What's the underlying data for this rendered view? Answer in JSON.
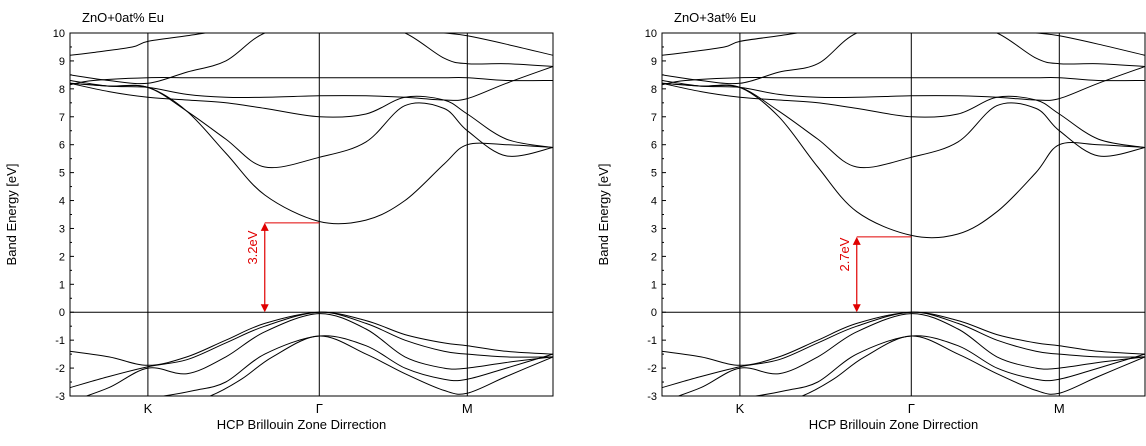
{
  "chart_data": [
    {
      "type": "line",
      "title": "ZnO+0at% Eu",
      "xlabel": "HCP Brillouin Zone Dirrection",
      "ylabel": "Band Energy [eV]",
      "ylim": [
        -3,
        10
      ],
      "yticks": [
        "-3",
        "-2",
        "-1",
        "0",
        "1",
        "2",
        "3",
        "4",
        "5",
        "6",
        "7",
        "8",
        "9",
        "10"
      ],
      "xlim": [
        0,
        6.2
      ],
      "xticks": [
        {
          "x": 1.0,
          "label": "K"
        },
        {
          "x": 3.2,
          "label": "Γ"
        },
        {
          "x": 5.1,
          "label": "M"
        }
      ],
      "grid": false,
      "annotation": {
        "label": "3.2eV",
        "x": 2.5,
        "from": 0,
        "to": 3.2,
        "guide_to_x": 3.2,
        "color": "#e00000"
      },
      "series": [
        {
          "x": [
            0,
            0.5,
            1.0,
            1.5,
            2.0,
            2.5,
            3.2,
            3.8,
            4.3,
            4.8,
            5.1,
            5.6,
            6.2
          ],
          "values": [
            8.5,
            8.3,
            8.2,
            8.6,
            9.0,
            10.0,
            10.4,
            10.3,
            10.0,
            9.1,
            8.9,
            8.9,
            8.8
          ]
        },
        {
          "x": [
            0,
            0.3,
            0.8,
            1.0,
            1.5,
            2.0,
            2.5,
            3.2,
            3.8,
            4.3,
            4.8,
            5.1,
            5.6,
            6.2
          ],
          "values": [
            9.2,
            9.3,
            9.5,
            9.7,
            9.9,
            10.1,
            10.2,
            10.3,
            10.2,
            10.1,
            10.0,
            9.9,
            9.6,
            9.2
          ]
        },
        {
          "x": [
            0,
            0.3,
            1.0,
            1.5,
            2.0,
            2.5,
            3.2,
            3.8,
            4.3,
            4.8,
            5.1,
            5.6,
            6.2
          ],
          "values": [
            8.15,
            8.3,
            8.4,
            8.4,
            8.4,
            8.4,
            8.4,
            8.4,
            8.4,
            8.4,
            8.4,
            8.3,
            8.3
          ]
        },
        {
          "x": [
            0,
            0.5,
            1.0,
            1.5,
            2.0,
            2.5,
            3.2,
            3.8,
            4.3,
            4.8,
            5.1,
            5.6,
            6.2
          ],
          "values": [
            8.3,
            8.1,
            8.05,
            7.8,
            7.7,
            7.7,
            7.75,
            7.75,
            7.7,
            7.6,
            7.65,
            8.2,
            8.8
          ]
        },
        {
          "x": [
            0,
            0.5,
            1.0,
            1.5,
            2.0,
            2.5,
            3.2,
            3.8,
            4.3,
            4.8,
            5.1,
            5.6,
            6.2
          ],
          "values": [
            8.2,
            7.9,
            7.7,
            7.6,
            7.5,
            7.3,
            7.0,
            7.1,
            7.7,
            7.6,
            7.1,
            6.2,
            5.9
          ]
        },
        {
          "x": [
            0,
            0.5,
            1.0,
            1.5,
            2.0,
            2.5,
            3.2,
            3.8,
            4.3,
            4.8,
            5.1,
            5.6,
            6.2
          ],
          "values": [
            8.2,
            8.1,
            8.05,
            7.2,
            6.2,
            5.2,
            5.55,
            6.1,
            7.4,
            7.3,
            6.5,
            5.6,
            5.9
          ]
        },
        {
          "x": [
            0,
            0.5,
            1.0,
            1.5,
            2.0,
            2.5,
            3.2,
            3.8,
            4.3,
            4.8,
            5.1,
            5.6,
            6.2
          ],
          "values": [
            8.2,
            8.1,
            8.05,
            7.2,
            5.7,
            4.2,
            3.25,
            3.3,
            4.0,
            5.3,
            6.0,
            6.0,
            5.9
          ]
        },
        {
          "x": [
            0,
            0.5,
            1.0,
            1.5,
            2.0,
            2.5,
            3.2,
            3.8,
            4.3,
            4.8,
            5.1,
            5.6,
            6.2
          ],
          "values": [
            -1.4,
            -1.6,
            -1.9,
            -1.6,
            -1.0,
            -0.4,
            0.0,
            -0.3,
            -0.8,
            -1.1,
            -1.2,
            -1.4,
            -1.5
          ]
        },
        {
          "x": [
            0,
            0.5,
            1.0,
            1.5,
            2.0,
            2.5,
            3.2,
            3.8,
            4.3,
            4.8,
            5.1,
            5.6,
            6.2
          ],
          "values": [
            -2.7,
            -2.3,
            -1.95,
            -1.7,
            -1.1,
            -0.5,
            0.0,
            -0.4,
            -1.0,
            -1.4,
            -1.5,
            -1.6,
            -1.6
          ]
        },
        {
          "x": [
            0,
            0.5,
            1.0,
            1.5,
            2.0,
            2.5,
            3.2,
            3.8,
            4.3,
            4.8,
            5.1,
            5.6,
            6.2
          ],
          "values": [
            -3.2,
            -2.7,
            -2.0,
            -2.2,
            -1.6,
            -0.7,
            -0.05,
            -0.6,
            -1.6,
            -2.0,
            -2.0,
            -1.8,
            -1.6
          ]
        },
        {
          "x": [
            0.3,
            0.8,
            1.2,
            1.6,
            2.0,
            2.5,
            3.2,
            3.8,
            4.3,
            4.8,
            5.1,
            5.6,
            6.2
          ],
          "values": [
            -3.2,
            -3.1,
            -3.0,
            -2.8,
            -2.5,
            -1.5,
            -0.85,
            -1.2,
            -2.0,
            -2.4,
            -2.4,
            -2.0,
            -1.5
          ]
        },
        {
          "x": [
            1.4,
            1.8,
            2.2,
            2.6,
            3.2,
            3.8,
            4.3,
            4.8,
            5.1,
            5.6,
            6.2
          ],
          "values": [
            -3.3,
            -3.0,
            -2.4,
            -1.6,
            -0.85,
            -1.5,
            -2.2,
            -2.8,
            -2.9,
            -2.3,
            -1.6
          ]
        }
      ]
    },
    {
      "type": "line",
      "title": "ZnO+3at% Eu",
      "xlabel": "HCP Brillouin Zone Dirrection",
      "ylabel": "Band Energy [eV]",
      "ylim": [
        -3,
        10
      ],
      "yticks": [
        "-3",
        "-2",
        "-1",
        "0",
        "1",
        "2",
        "3",
        "4",
        "5",
        "6",
        "7",
        "8",
        "9",
        "10"
      ],
      "xlim": [
        0,
        6.2
      ],
      "xticks": [
        {
          "x": 1.0,
          "label": "K"
        },
        {
          "x": 3.2,
          "label": "Γ"
        },
        {
          "x": 5.1,
          "label": "M"
        }
      ],
      "grid": false,
      "annotation": {
        "label": "2.7eV",
        "x": 2.5,
        "from": 0,
        "to": 2.7,
        "guide_to_x": 3.2,
        "color": "#e00000"
      },
      "series": [
        {
          "x": [
            0,
            0.5,
            1.0,
            1.5,
            2.0,
            2.5,
            3.2,
            3.8,
            4.3,
            4.8,
            5.1,
            5.6,
            6.2
          ],
          "values": [
            8.5,
            8.3,
            8.2,
            8.6,
            8.9,
            10.0,
            10.4,
            10.3,
            10.0,
            9.1,
            8.9,
            8.9,
            8.8
          ]
        },
        {
          "x": [
            0,
            0.3,
            0.8,
            1.0,
            1.5,
            2.0,
            2.5,
            3.2,
            3.8,
            4.3,
            4.8,
            5.1,
            5.6,
            6.2
          ],
          "values": [
            9.2,
            9.3,
            9.5,
            9.7,
            9.9,
            10.1,
            10.2,
            10.3,
            10.2,
            10.1,
            10.0,
            9.9,
            9.6,
            9.2
          ]
        },
        {
          "x": [
            0,
            0.3,
            1.0,
            1.5,
            2.0,
            2.5,
            3.2,
            3.8,
            4.3,
            4.8,
            5.1,
            5.6,
            6.2
          ],
          "values": [
            8.15,
            8.3,
            8.4,
            8.4,
            8.4,
            8.4,
            8.4,
            8.4,
            8.4,
            8.4,
            8.4,
            8.3,
            8.3
          ]
        },
        {
          "x": [
            0,
            0.5,
            1.0,
            1.5,
            2.0,
            2.5,
            3.2,
            3.8,
            4.3,
            4.8,
            5.1,
            5.6,
            6.2
          ],
          "values": [
            8.3,
            8.1,
            8.05,
            7.8,
            7.7,
            7.7,
            7.75,
            7.75,
            7.7,
            7.6,
            7.65,
            8.2,
            8.8
          ]
        },
        {
          "x": [
            0,
            0.5,
            1.0,
            1.5,
            2.0,
            2.5,
            3.2,
            3.8,
            4.3,
            4.8,
            5.1,
            5.6,
            6.2
          ],
          "values": [
            8.2,
            7.9,
            7.7,
            7.6,
            7.5,
            7.3,
            7.0,
            7.1,
            7.7,
            7.6,
            7.1,
            6.2,
            5.9
          ]
        },
        {
          "x": [
            0,
            0.5,
            1.0,
            1.5,
            2.0,
            2.5,
            3.2,
            3.8,
            4.3,
            4.8,
            5.1,
            5.6,
            6.2
          ],
          "values": [
            8.2,
            8.1,
            8.05,
            7.2,
            6.2,
            5.2,
            5.55,
            6.1,
            7.4,
            7.3,
            6.5,
            5.6,
            5.9
          ]
        },
        {
          "x": [
            0,
            0.5,
            1.0,
            1.5,
            2.0,
            2.5,
            3.2,
            3.8,
            4.3,
            4.8,
            5.1,
            5.6,
            6.2
          ],
          "values": [
            8.2,
            8.1,
            8.05,
            7.0,
            5.2,
            3.6,
            2.75,
            2.8,
            3.6,
            5.0,
            6.0,
            6.0,
            5.9
          ]
        },
        {
          "x": [
            0,
            0.5,
            1.0,
            1.5,
            2.0,
            2.5,
            3.2,
            3.8,
            4.3,
            4.8,
            5.1,
            5.6,
            6.2
          ],
          "values": [
            -1.4,
            -1.6,
            -1.9,
            -1.6,
            -1.0,
            -0.4,
            0.0,
            -0.3,
            -0.8,
            -1.1,
            -1.2,
            -1.4,
            -1.5
          ]
        },
        {
          "x": [
            0,
            0.5,
            1.0,
            1.5,
            2.0,
            2.5,
            3.2,
            3.8,
            4.3,
            4.8,
            5.1,
            5.6,
            6.2
          ],
          "values": [
            -2.7,
            -2.3,
            -1.95,
            -1.7,
            -1.1,
            -0.5,
            0.0,
            -0.4,
            -1.0,
            -1.4,
            -1.5,
            -1.6,
            -1.6
          ]
        },
        {
          "x": [
            0,
            0.5,
            1.0,
            1.5,
            2.0,
            2.5,
            3.2,
            3.8,
            4.3,
            4.8,
            5.1,
            5.6,
            6.2
          ],
          "values": [
            -3.2,
            -2.7,
            -2.0,
            -2.2,
            -1.6,
            -0.7,
            -0.05,
            -0.6,
            -1.6,
            -2.0,
            -2.0,
            -1.8,
            -1.6
          ]
        },
        {
          "x": [
            0.3,
            0.8,
            1.2,
            1.6,
            2.0,
            2.5,
            3.2,
            3.8,
            4.3,
            4.8,
            5.1,
            5.6,
            6.2
          ],
          "values": [
            -3.2,
            -3.1,
            -3.0,
            -2.8,
            -2.5,
            -1.5,
            -0.85,
            -1.2,
            -2.0,
            -2.4,
            -2.4,
            -2.0,
            -1.5
          ]
        },
        {
          "x": [
            1.4,
            1.8,
            2.2,
            2.6,
            3.2,
            3.8,
            4.3,
            4.8,
            5.1,
            5.6,
            6.2
          ],
          "values": [
            -3.3,
            -3.0,
            -2.4,
            -1.6,
            -0.85,
            -1.5,
            -2.2,
            -2.8,
            -2.9,
            -2.3,
            -1.6
          ]
        }
      ]
    }
  ]
}
